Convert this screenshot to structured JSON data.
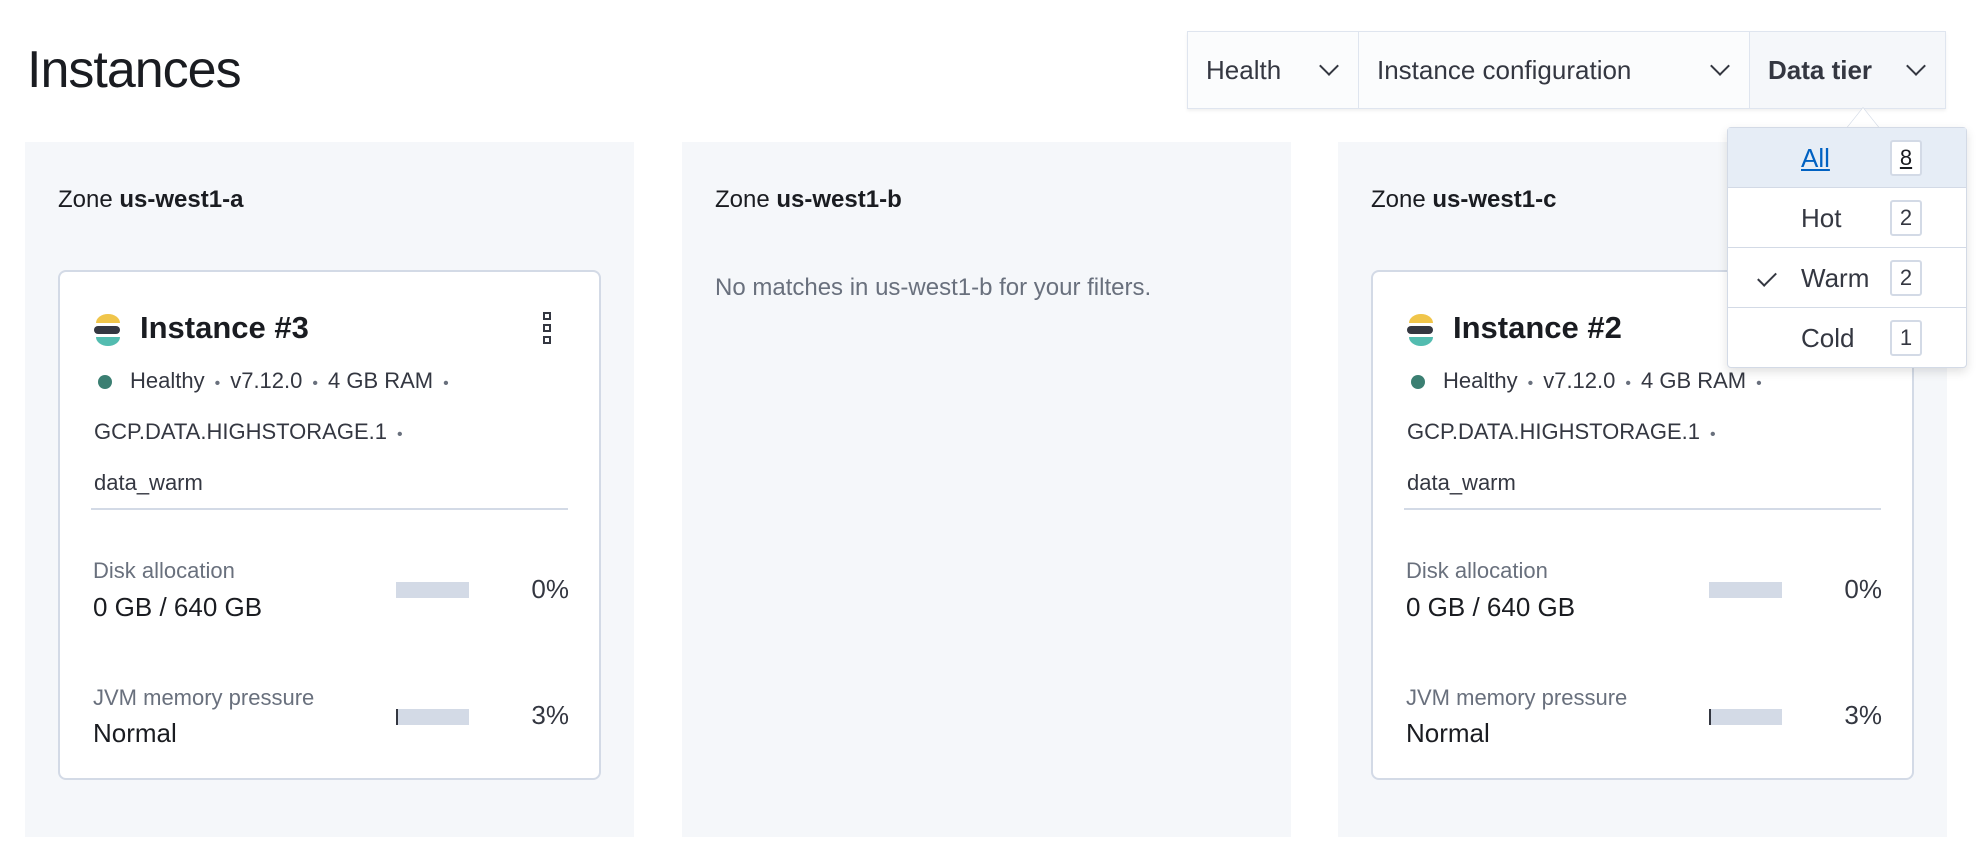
{
  "page": {
    "title": "Instances"
  },
  "filters": [
    {
      "label": "Health"
    },
    {
      "label": "Instance configuration"
    },
    {
      "label": "Data tier",
      "active": true
    }
  ],
  "data_tier_menu": {
    "options": [
      {
        "label": "All",
        "count": "8",
        "highlighted": true,
        "checked": false
      },
      {
        "label": "Hot",
        "count": "2",
        "checked": false
      },
      {
        "label": "Warm",
        "count": "2",
        "checked": true
      },
      {
        "label": "Cold",
        "count": "1",
        "checked": false
      }
    ]
  },
  "zones": [
    {
      "prefix": "Zone",
      "name": "us-west1-a",
      "instance": {
        "title": "Instance #3",
        "health": "Healthy",
        "version": "v7.12.0",
        "ram": "4 GB RAM",
        "config": "GCP.DATA.HIGHSTORAGE.1",
        "tier": "data_warm",
        "disk_label": "Disk allocation",
        "disk_value": "0 GB / 640 GB",
        "disk_pct": "0%",
        "disk_fill": 0,
        "jvm_label": "JVM memory pressure",
        "jvm_value": "Normal",
        "jvm_pct": "3%",
        "jvm_fill": 3
      }
    },
    {
      "prefix": "Zone",
      "name": "us-west1-b",
      "empty_message": "No matches in us-west1-b for your filters."
    },
    {
      "prefix": "Zone",
      "name": "us-west1-c",
      "instance": {
        "title": "Instance #2",
        "health": "Healthy",
        "version": "v7.12.0",
        "ram": "4 GB RAM",
        "config": "GCP.DATA.HIGHSTORAGE.1",
        "tier": "data_warm",
        "disk_label": "Disk allocation",
        "disk_value": "0 GB / 640 GB",
        "disk_pct": "0%",
        "disk_fill": 0,
        "jvm_label": "JVM memory pressure",
        "jvm_value": "Normal",
        "jvm_pct": "3%",
        "jvm_fill": 3
      }
    }
  ],
  "colors": {
    "healthy": "#3b7f72",
    "link": "#0061c2",
    "logo_yellow": "#f0c54a",
    "logo_dark": "#343741",
    "logo_teal": "#53bcb0"
  }
}
